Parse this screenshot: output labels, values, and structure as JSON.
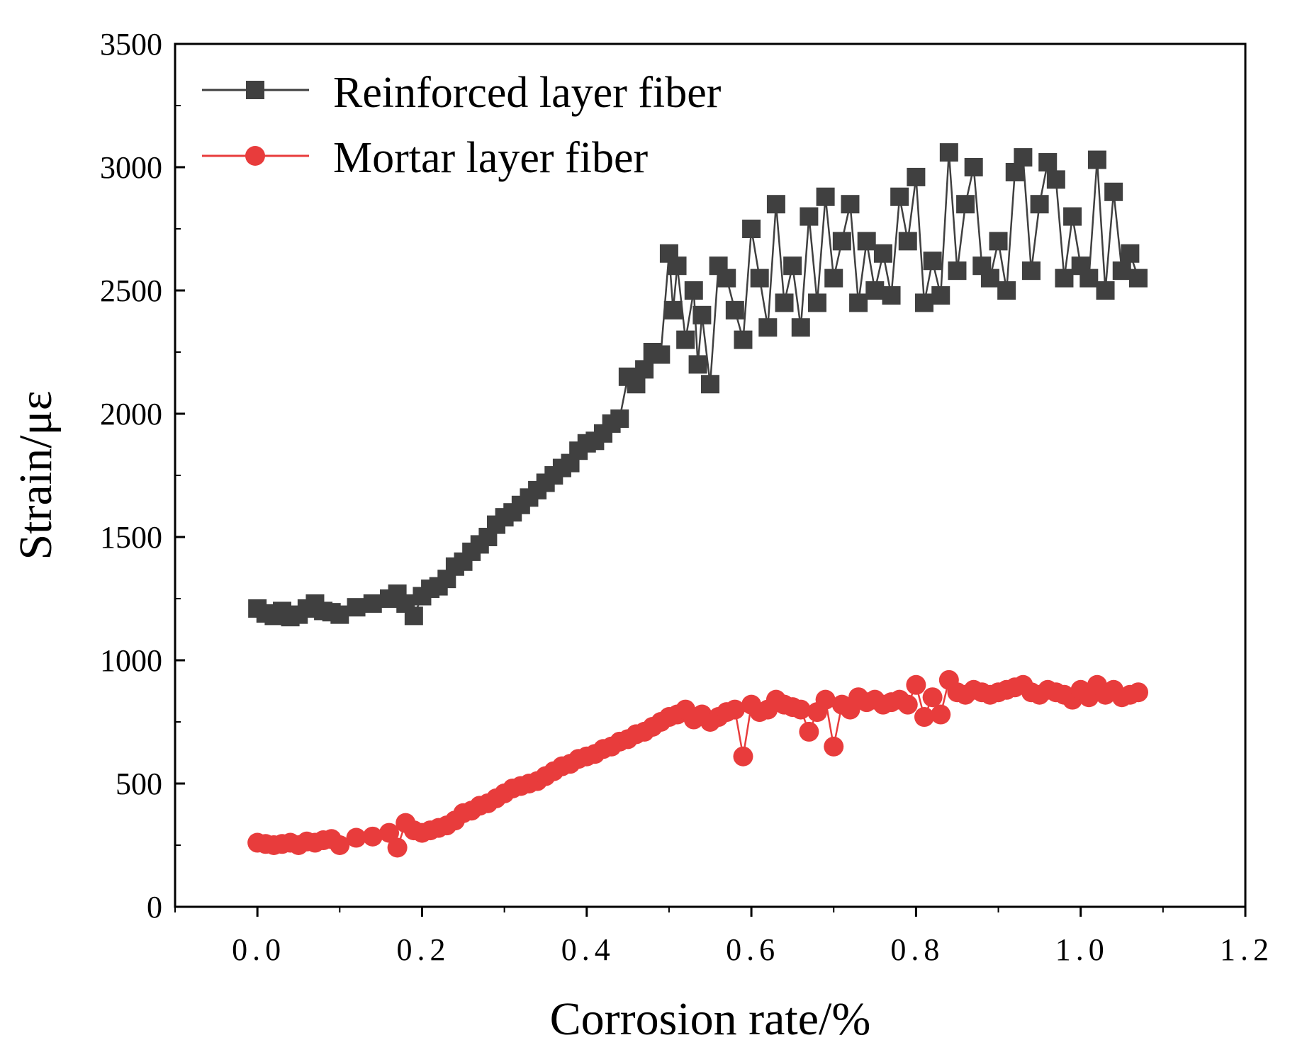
{
  "chart_data": {
    "type": "scatter",
    "xlabel": "Corrosion rate/%",
    "ylabel": "Strain/με",
    "xlim": [
      -0.1,
      1.2
    ],
    "ylim": [
      0,
      3500
    ],
    "x_ticks": [
      "0.0",
      "0.2",
      "0.4",
      "0.6",
      "0.8",
      "1.0",
      "1.2"
    ],
    "x_tick_values": [
      0.0,
      0.2,
      0.4,
      0.6,
      0.8,
      1.0,
      1.2
    ],
    "y_ticks": [
      "0",
      "500",
      "1000",
      "1500",
      "2000",
      "2500",
      "3000",
      "3500"
    ],
    "y_tick_values": [
      0,
      500,
      1000,
      1500,
      2000,
      2500,
      3000,
      3500
    ],
    "legend_position": "top-left",
    "series": [
      {
        "name": "Reinforced layer fiber",
        "color": "#404040",
        "marker": "square",
        "x": [
          0.0,
          0.01,
          0.02,
          0.03,
          0.04,
          0.05,
          0.06,
          0.07,
          0.08,
          0.09,
          0.1,
          0.12,
          0.14,
          0.16,
          0.17,
          0.18,
          0.19,
          0.2,
          0.21,
          0.22,
          0.23,
          0.24,
          0.25,
          0.26,
          0.27,
          0.28,
          0.29,
          0.3,
          0.31,
          0.32,
          0.33,
          0.34,
          0.35,
          0.36,
          0.37,
          0.38,
          0.39,
          0.4,
          0.41,
          0.42,
          0.43,
          0.44,
          0.45,
          0.46,
          0.47,
          0.48,
          0.49,
          0.5,
          0.505,
          0.51,
          0.52,
          0.53,
          0.535,
          0.54,
          0.55,
          0.56,
          0.57,
          0.58,
          0.59,
          0.6,
          0.61,
          0.62,
          0.63,
          0.64,
          0.65,
          0.66,
          0.67,
          0.68,
          0.69,
          0.7,
          0.71,
          0.72,
          0.73,
          0.74,
          0.75,
          0.76,
          0.77,
          0.78,
          0.79,
          0.8,
          0.81,
          0.82,
          0.83,
          0.84,
          0.85,
          0.86,
          0.87,
          0.88,
          0.89,
          0.9,
          0.91,
          0.92,
          0.93,
          0.94,
          0.95,
          0.96,
          0.97,
          0.98,
          0.99,
          1.0,
          1.01,
          1.02,
          1.03,
          1.04,
          1.05,
          1.06,
          1.07
        ],
        "values": [
          1210,
          1190,
          1180,
          1200,
          1175,
          1185,
          1210,
          1230,
          1200,
          1195,
          1185,
          1215,
          1230,
          1250,
          1270,
          1230,
          1180,
          1260,
          1290,
          1300,
          1330,
          1380,
          1400,
          1440,
          1470,
          1500,
          1550,
          1580,
          1600,
          1630,
          1660,
          1690,
          1720,
          1750,
          1780,
          1800,
          1850,
          1880,
          1890,
          1920,
          1960,
          1980,
          2150,
          2120,
          2180,
          2250,
          2240,
          2650,
          2420,
          2600,
          2300,
          2500,
          2200,
          2400,
          2120,
          2600,
          2550,
          2420,
          2300,
          2750,
          2550,
          2350,
          2850,
          2450,
          2600,
          2350,
          2800,
          2450,
          2880,
          2550,
          2700,
          2850,
          2450,
          2700,
          2500,
          2650,
          2480,
          2880,
          2700,
          2960,
          2450,
          2620,
          2480,
          3060,
          2580,
          2850,
          3000,
          2600,
          2550,
          2700,
          2500,
          2980,
          3040,
          2580,
          2850,
          3020,
          2950,
          2550,
          2800,
          2600,
          2550,
          3030,
          2500,
          2900,
          2580,
          2650,
          2550
        ]
      },
      {
        "name": "Mortar layer fiber",
        "color": "#e83c3c",
        "marker": "circle",
        "x": [
          0.0,
          0.01,
          0.02,
          0.03,
          0.04,
          0.05,
          0.06,
          0.07,
          0.08,
          0.09,
          0.1,
          0.12,
          0.14,
          0.16,
          0.17,
          0.18,
          0.19,
          0.2,
          0.21,
          0.22,
          0.23,
          0.24,
          0.25,
          0.26,
          0.27,
          0.28,
          0.29,
          0.3,
          0.31,
          0.32,
          0.33,
          0.34,
          0.35,
          0.36,
          0.37,
          0.38,
          0.39,
          0.4,
          0.41,
          0.42,
          0.43,
          0.44,
          0.45,
          0.46,
          0.47,
          0.48,
          0.49,
          0.5,
          0.51,
          0.52,
          0.53,
          0.54,
          0.55,
          0.56,
          0.57,
          0.58,
          0.59,
          0.6,
          0.61,
          0.62,
          0.63,
          0.64,
          0.65,
          0.66,
          0.67,
          0.68,
          0.69,
          0.7,
          0.71,
          0.72,
          0.73,
          0.74,
          0.75,
          0.76,
          0.77,
          0.78,
          0.79,
          0.8,
          0.81,
          0.82,
          0.83,
          0.84,
          0.85,
          0.86,
          0.87,
          0.88,
          0.89,
          0.9,
          0.91,
          0.92,
          0.93,
          0.94,
          0.95,
          0.96,
          0.97,
          0.98,
          0.99,
          1.0,
          1.01,
          1.02,
          1.03,
          1.04,
          1.05,
          1.06,
          1.07
        ],
        "values": [
          260,
          255,
          250,
          255,
          260,
          250,
          265,
          260,
          270,
          275,
          250,
          280,
          285,
          300,
          240,
          340,
          310,
          300,
          310,
          320,
          330,
          350,
          380,
          390,
          410,
          420,
          440,
          460,
          480,
          490,
          500,
          510,
          530,
          550,
          570,
          580,
          600,
          610,
          620,
          640,
          650,
          670,
          680,
          700,
          710,
          730,
          750,
          770,
          780,
          800,
          760,
          780,
          750,
          770,
          790,
          800,
          610,
          820,
          790,
          800,
          840,
          820,
          810,
          800,
          710,
          790,
          840,
          650,
          820,
          800,
          850,
          830,
          840,
          820,
          830,
          840,
          820,
          900,
          770,
          850,
          780,
          920,
          870,
          860,
          880,
          870,
          860,
          870,
          880,
          890,
          900,
          870,
          860,
          880,
          870,
          860,
          840,
          880,
          850,
          900,
          860,
          880,
          850,
          860,
          870
        ]
      }
    ]
  }
}
